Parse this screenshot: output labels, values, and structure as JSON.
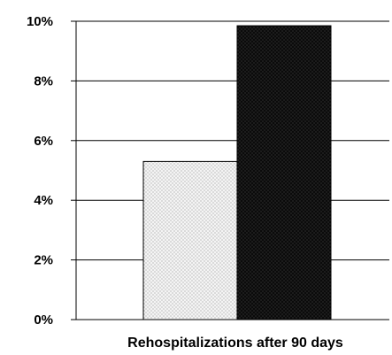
{
  "chart_data": {
    "type": "bar",
    "categories": [
      "Rehospitalizations after 90 days"
    ],
    "series": [
      {
        "values": [
          5.3
        ],
        "color": "#eeeeee",
        "pattern": "dotted-light"
      },
      {
        "values": [
          9.85
        ],
        "color": "#111111",
        "pattern": "dotted-dark"
      }
    ],
    "xlabel": "Rehospitalizations after 90 days",
    "ylabel": "",
    "ylim": [
      0,
      10
    ],
    "y_ticks": [
      0,
      2,
      4,
      6,
      8,
      10
    ],
    "y_tick_labels": [
      "0%",
      "2%",
      "4%",
      "6%",
      "8%",
      "10%"
    ],
    "grid": true,
    "legend": "none"
  }
}
